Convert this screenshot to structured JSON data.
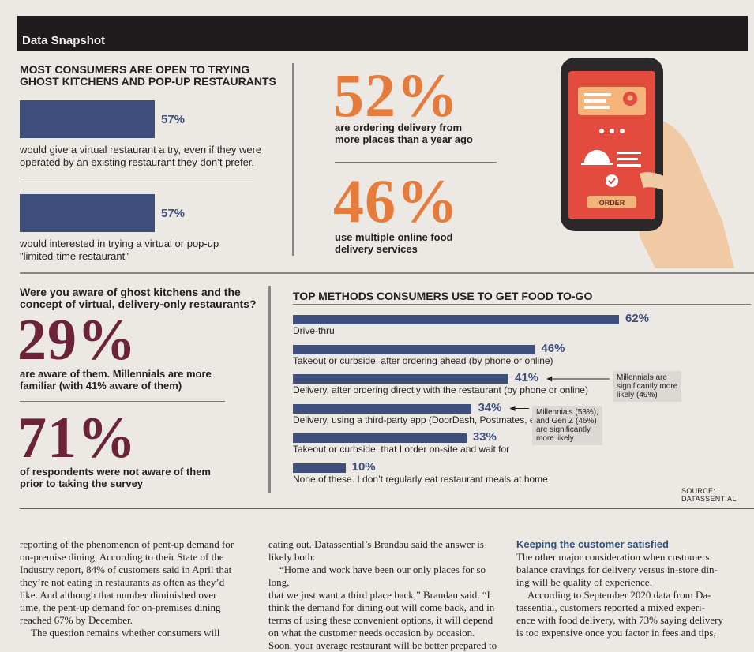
{
  "banner": {
    "label": "Data Snapshot"
  },
  "virtual": {
    "title_line1": "MOST CONSUMERS ARE OPEN TO TRYING",
    "title_line2": "GHOST KITCHENS AND POP-UP RESTAURANTS",
    "items": [
      {
        "pct": "57%",
        "value": 57,
        "line1": "would give a virtual restaurant a try, even if they were",
        "line2": "operated by an existing restaurant they don’t prefer."
      },
      {
        "pct": "57%",
        "value": 57,
        "line1": "would interested in trying a virtual or pop-up",
        "line2": "\"limited-time restaurant\""
      }
    ]
  },
  "delivery": {
    "stat1": {
      "pct": "52%",
      "line1": "are ordering delivery from",
      "line2": "more places than a year ago"
    },
    "stat2": {
      "pct": "46%",
      "line1": "use multiple online food",
      "line2": "delivery services"
    },
    "phone": {
      "order_label": "ORDER"
    }
  },
  "awareness": {
    "question_line1": "Were you aware of ghost kitchens and the",
    "question_line2": "concept of virtual, delivery-only restaurants?",
    "stat1": {
      "pct": "29%",
      "line1": "are aware of them. Millennials are more",
      "line2": "familiar (with 41% aware of them)"
    },
    "stat2": {
      "pct": "71%",
      "line1": "of respondents were not aware of them",
      "line2": "prior to taking the survey"
    }
  },
  "chart_data": {
    "type": "bar",
    "title": "TOP METHODS CONSUMERS USE TO GET FOOD TO-GO",
    "categories": [
      "Drive-thru",
      "Takeout or curbside, after ordering ahead (by phone or online)",
      "Delivery, after ordering directly with the restaurant (by phone or online)",
      "Delivery, using a third-party app (DoorDash, Postmates, etc.)",
      "Takeout or curbside, that I order on-site and wait for",
      "None of these. I don’t regularly eat restaurant meals at home"
    ],
    "values": [
      62,
      46,
      41,
      34,
      33,
      10
    ],
    "value_labels": [
      "62%",
      "46%",
      "41%",
      "34%",
      "33%",
      "10%"
    ],
    "xlim": [
      0,
      62
    ],
    "annotations": [
      {
        "target": 2,
        "lines": [
          "Millennials are",
          "significantly more",
          "likely (49%)"
        ]
      },
      {
        "target": 3,
        "lines": [
          "Millennials (53%),",
          "and Gen Z (46%)",
          "are significantly",
          "more likely"
        ]
      }
    ],
    "source": "SOURCE: DATASSENTIAL"
  },
  "article": {
    "col1": {
      "lines": [
        "reporting of the phenomenon of pent-up demand for",
        "on-premise dining. According to their State of the",
        "Industry report, 84% of customers said in April that",
        "they’re not eating in restaurants as often as they’d",
        "like. And although that number diminished over",
        "time, the pent-up demand for on-premises dining",
        "reached 67% by December."
      ],
      "para2": "The question remains whether consumers will"
    },
    "col2": {
      "lines1": [
        "eating out. Datassential’s Brandau said the answer is",
        "likely both:"
      ],
      "lines2": [
        "“Home and work have been our only places for so long,",
        "that we just want a third place back,” Brandau said. “I",
        "think the demand for dining out will come back, and in",
        "terms of using these convenient options, it will depend",
        "on what the customer needs occasion by occasion.",
        "Soon, your average restaurant will be better prepared to"
      ]
    },
    "col3": {
      "heading": "Keeping the customer satisfied",
      "lines1": [
        "The other major consideration when customers",
        "balance cravings for delivery versus in-store din-",
        "ing will be quality of experience."
      ],
      "lines2": [
        "According to September 2020 data from Da-",
        "tassential, customers reported a mixed experi-",
        "ence with food delivery, with 73% saying delivery",
        "is too expensive once you factor in fees and tips,"
      ]
    }
  }
}
